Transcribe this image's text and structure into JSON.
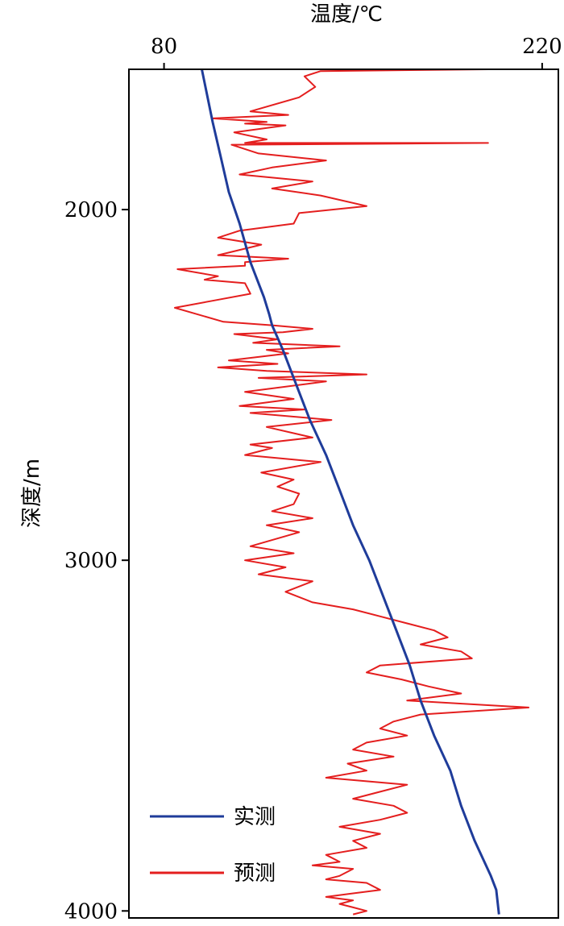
{
  "chart_data": {
    "type": "line",
    "orientation": "depth-profile",
    "xlabel": "温度/℃",
    "ylabel": "深度/m",
    "x_axis_position": "top",
    "xlim": [
      67,
      226
    ],
    "ylim": [
      1600,
      4020
    ],
    "y_inverted": true,
    "x_ticks": [
      80,
      220
    ],
    "y_ticks": [
      2000,
      3000,
      4000
    ],
    "grid": false,
    "legend": {
      "placement": "bottom-left",
      "entries": [
        "实测",
        "预测"
      ]
    },
    "series": [
      {
        "name": "实测",
        "color": "#1f3c9a",
        "points": [
          [
            94,
            1600
          ],
          [
            98,
            1750
          ],
          [
            101,
            1850
          ],
          [
            104,
            1950
          ],
          [
            108,
            2040
          ],
          [
            112,
            2150
          ],
          [
            117,
            2250
          ],
          [
            119,
            2300
          ],
          [
            120,
            2330
          ],
          [
            124,
            2400
          ],
          [
            129,
            2500
          ],
          [
            134,
            2600
          ],
          [
            140,
            2700
          ],
          [
            145,
            2800
          ],
          [
            150,
            2900
          ],
          [
            156,
            3000
          ],
          [
            161,
            3100
          ],
          [
            166,
            3200
          ],
          [
            171,
            3300
          ],
          [
            175,
            3400
          ],
          [
            180,
            3500
          ],
          [
            186,
            3600
          ],
          [
            190,
            3700
          ],
          [
            195,
            3800
          ],
          [
            201,
            3900
          ],
          [
            203,
            3940
          ],
          [
            204,
            4010
          ]
        ]
      },
      {
        "name": "预测",
        "color": "#e41e1e",
        "points": [
          [
            134,
            1600
          ],
          [
            200,
            1600
          ],
          [
            138,
            1605
          ],
          [
            132,
            1620
          ],
          [
            136,
            1650
          ],
          [
            130,
            1680
          ],
          [
            112,
            1720
          ],
          [
            126,
            1730
          ],
          [
            98,
            1740
          ],
          [
            118,
            1750
          ],
          [
            110,
            1755
          ],
          [
            125,
            1760
          ],
          [
            106,
            1780
          ],
          [
            118,
            1800
          ],
          [
            110,
            1810
          ],
          [
            200,
            1810
          ],
          [
            105,
            1815
          ],
          [
            115,
            1840
          ],
          [
            140,
            1860
          ],
          [
            120,
            1880
          ],
          [
            108,
            1900
          ],
          [
            135,
            1920
          ],
          [
            120,
            1940
          ],
          [
            138,
            1960
          ],
          [
            155,
            1990
          ],
          [
            130,
            2010
          ],
          [
            128,
            2040
          ],
          [
            108,
            2060
          ],
          [
            100,
            2080
          ],
          [
            116,
            2100
          ],
          [
            100,
            2130
          ],
          [
            126,
            2140
          ],
          [
            110,
            2150
          ],
          [
            110,
            2160
          ],
          [
            85,
            2170
          ],
          [
            100,
            2190
          ],
          [
            95,
            2200
          ],
          [
            110,
            2210
          ],
          [
            112,
            2240
          ],
          [
            98,
            2260
          ],
          [
            84,
            2280
          ],
          [
            102,
            2320
          ],
          [
            120,
            2330
          ],
          [
            135,
            2340
          ],
          [
            124,
            2350
          ],
          [
            106,
            2355
          ],
          [
            122,
            2370
          ],
          [
            113,
            2380
          ],
          [
            145,
            2390
          ],
          [
            118,
            2400
          ],
          [
            126,
            2410
          ],
          [
            104,
            2430
          ],
          [
            122,
            2440
          ],
          [
            100,
            2450
          ],
          [
            118,
            2460
          ],
          [
            155,
            2470
          ],
          [
            115,
            2480
          ],
          [
            140,
            2490
          ],
          [
            110,
            2520
          ],
          [
            128,
            2540
          ],
          [
            108,
            2560
          ],
          [
            132,
            2570
          ],
          [
            112,
            2580
          ],
          [
            142,
            2600
          ],
          [
            118,
            2620
          ],
          [
            135,
            2650
          ],
          [
            112,
            2670
          ],
          [
            120,
            2680
          ],
          [
            110,
            2700
          ],
          [
            138,
            2720
          ],
          [
            116,
            2750
          ],
          [
            128,
            2770
          ],
          [
            122,
            2790
          ],
          [
            130,
            2810
          ],
          [
            128,
            2840
          ],
          [
            120,
            2860
          ],
          [
            135,
            2880
          ],
          [
            118,
            2900
          ],
          [
            130,
            2920
          ],
          [
            112,
            2960
          ],
          [
            128,
            2980
          ],
          [
            110,
            3000
          ],
          [
            125,
            3020
          ],
          [
            115,
            3040
          ],
          [
            135,
            3060
          ],
          [
            125,
            3090
          ],
          [
            135,
            3120
          ],
          [
            150,
            3140
          ],
          [
            160,
            3160
          ],
          [
            170,
            3180
          ],
          [
            180,
            3200
          ],
          [
            185,
            3220
          ],
          [
            175,
            3240
          ],
          [
            190,
            3260
          ],
          [
            194,
            3280
          ],
          [
            160,
            3300
          ],
          [
            155,
            3320
          ],
          [
            168,
            3340
          ],
          [
            178,
            3360
          ],
          [
            190,
            3380
          ],
          [
            170,
            3400
          ],
          [
            215,
            3420
          ],
          [
            175,
            3440
          ],
          [
            165,
            3460
          ],
          [
            160,
            3480
          ],
          [
            170,
            3500
          ],
          [
            155,
            3520
          ],
          [
            150,
            3540
          ],
          [
            165,
            3560
          ],
          [
            148,
            3580
          ],
          [
            155,
            3600
          ],
          [
            140,
            3620
          ],
          [
            170,
            3640
          ],
          [
            160,
            3660
          ],
          [
            150,
            3680
          ],
          [
            165,
            3700
          ],
          [
            170,
            3720
          ],
          [
            160,
            3740
          ],
          [
            145,
            3760
          ],
          [
            160,
            3780
          ],
          [
            150,
            3800
          ],
          [
            155,
            3820
          ],
          [
            140,
            3840
          ],
          [
            145,
            3860
          ],
          [
            135,
            3870
          ],
          [
            150,
            3880
          ],
          [
            145,
            3900
          ],
          [
            140,
            3910
          ],
          [
            155,
            3920
          ],
          [
            160,
            3940
          ],
          [
            150,
            3950
          ],
          [
            140,
            3960
          ],
          [
            150,
            3970
          ],
          [
            145,
            3980
          ],
          [
            150,
            3990
          ],
          [
            155,
            4000
          ],
          [
            150,
            4010
          ]
        ]
      }
    ]
  }
}
